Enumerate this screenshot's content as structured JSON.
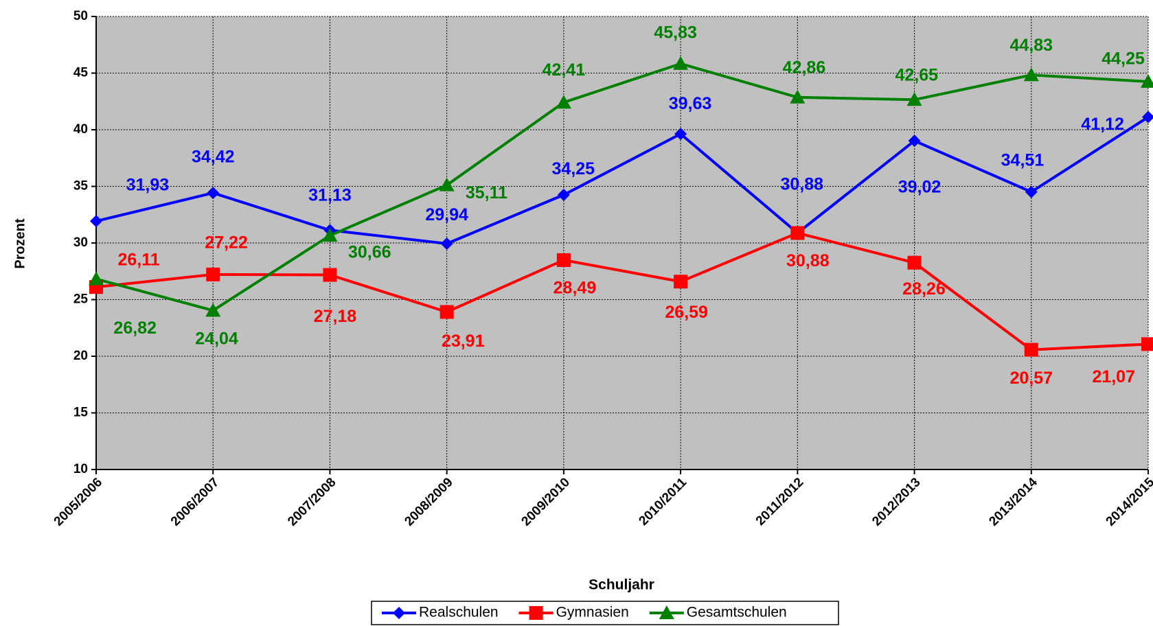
{
  "chart_data": {
    "type": "line",
    "y_label": "Prozent",
    "x_label": "Schuljahr",
    "categories": [
      "2005/2006",
      "2006/2007",
      "2007/2008",
      "2008/2009",
      "2009/2010",
      "2010/2011",
      "2011/2012",
      "2012/2013",
      "2013/2014",
      "2014/2015"
    ],
    "series": [
      {
        "name": "Realschulen",
        "color": "#0000ff",
        "marker": "diamond",
        "values": [
          31.93,
          34.42,
          31.13,
          29.94,
          34.25,
          39.63,
          30.88,
          39.02,
          34.51,
          41.12
        ],
        "value_labels": [
          "31,93",
          "34,42",
          "31,13",
          "29,94",
          "34,25",
          "39,63",
          "30,88",
          "39,02",
          "34,51",
          "41,12"
        ]
      },
      {
        "name": "Gymnasien",
        "color": "#ff0000",
        "marker": "square",
        "values": [
          26.11,
          27.22,
          27.18,
          23.91,
          28.49,
          26.59,
          30.88,
          28.26,
          20.57,
          21.07
        ],
        "value_labels": [
          "26,11",
          "27,22",
          "27,18",
          "23,91",
          "28,49",
          "26,59",
          "30,88",
          "28,26",
          "20,57",
          "21,07"
        ]
      },
      {
        "name": "Gesamtschulen",
        "color": "#008000",
        "marker": "triangle",
        "values": [
          26.82,
          24.04,
          30.66,
          35.11,
          42.41,
          45.83,
          42.86,
          42.65,
          44.83,
          44.25
        ],
        "value_labels": [
          "26,82",
          "24,04",
          "30,66",
          "35,11",
          "42,41",
          "45,83",
          "42,86",
          "42,65",
          "44,83",
          "44,25"
        ]
      }
    ],
    "ylim": [
      10,
      50
    ],
    "yticks": [
      10,
      15,
      20,
      25,
      30,
      35,
      40,
      45,
      50
    ],
    "grid": true,
    "background": "#c0c0c0"
  }
}
